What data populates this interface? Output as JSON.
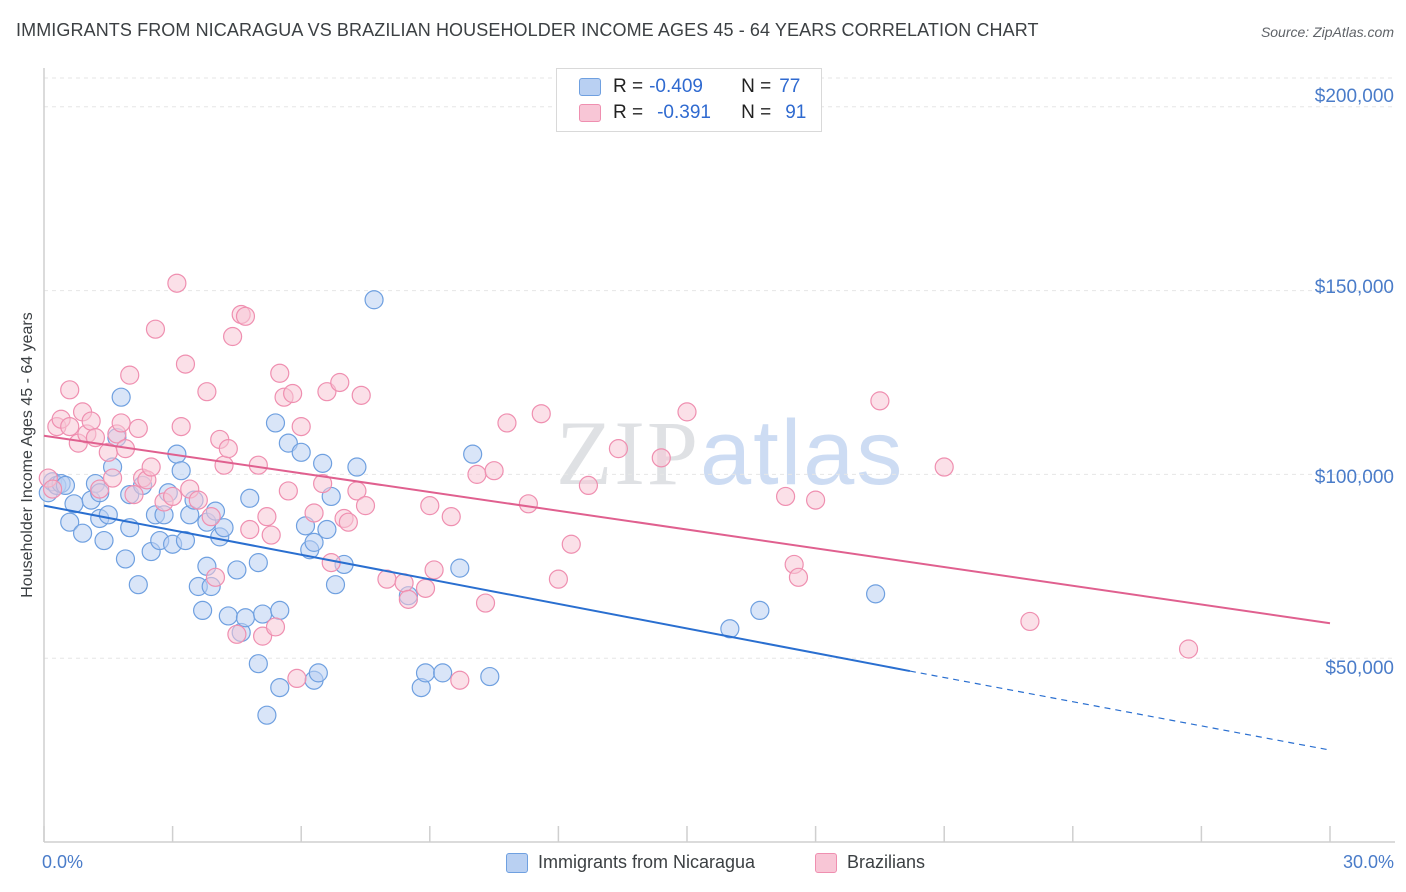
{
  "header": {
    "title": "IMMIGRANTS FROM NICARAGUA VS BRAZILIAN HOUSEHOLDER INCOME AGES 45 - 64 YEARS CORRELATION CHART",
    "source": "Source: ZipAtlas.com"
  },
  "watermark": {
    "zip": "ZIP",
    "atlas": "atlas"
  },
  "legend": {
    "r_label": "R =",
    "n_label": "N =",
    "rows": [
      {
        "r": "-0.409",
        "n": "77",
        "color": "#6fa0e0"
      },
      {
        "r": "-0.391",
        "n": "91",
        "color": "#ef8fb0"
      }
    ]
  },
  "colors": {
    "blue_fill": "#b9d0f2",
    "blue_stroke": "#6fa0e0",
    "blue_line": "#2a6fd0",
    "pink_fill": "#f8c6d6",
    "pink_stroke": "#ef8fb0",
    "pink_line": "#e0608f",
    "grid": "#e6e6e6",
    "tick_label": "#4a7cc9"
  },
  "chart_data": {
    "type": "scatter",
    "title": "IMMIGRANTS FROM NICARAGUA VS BRAZILIAN HOUSEHOLDER INCOME AGES 45 - 64 YEARS CORRELATION CHART",
    "xlabel": "",
    "ylabel": "Householder Income Ages 45 - 64 years",
    "xlim": [
      0,
      30
    ],
    "ylim": [
      0,
      210000
    ],
    "x_tick_labels": [
      "0.0%",
      "30.0%"
    ],
    "y_ticks": [
      50000,
      100000,
      150000,
      200000
    ],
    "y_tick_labels": [
      "$50,000",
      "$100,000",
      "$150,000",
      "$200,000"
    ],
    "grid": true,
    "legend_position": "top-center",
    "series": [
      {
        "name": "Immigrants from Nicaragua",
        "color": "#6fa0e0",
        "trend": {
          "x0": 0.0,
          "y0": 91500,
          "x1": 20.2,
          "y1": 46500,
          "dashed_to_x": 30.0,
          "dashed_to_y": 25000
        },
        "points": [
          [
            0.1,
            95000
          ],
          [
            0.2,
            98000
          ],
          [
            0.3,
            97000
          ],
          [
            0.4,
            97500
          ],
          [
            0.5,
            97000
          ],
          [
            0.6,
            87000
          ],
          [
            0.7,
            92000
          ],
          [
            0.9,
            84000
          ],
          [
            1.1,
            93000
          ],
          [
            1.2,
            97500
          ],
          [
            1.3,
            88000
          ],
          [
            1.3,
            95000
          ],
          [
            1.4,
            82000
          ],
          [
            1.5,
            89000
          ],
          [
            1.6,
            102000
          ],
          [
            1.7,
            110000
          ],
          [
            1.8,
            121000
          ],
          [
            1.9,
            77000
          ],
          [
            2.0,
            94500
          ],
          [
            2.0,
            85500
          ],
          [
            2.2,
            70000
          ],
          [
            2.3,
            97000
          ],
          [
            2.5,
            79000
          ],
          [
            2.6,
            89000
          ],
          [
            2.7,
            82000
          ],
          [
            2.8,
            89000
          ],
          [
            2.9,
            95000
          ],
          [
            3.0,
            81000
          ],
          [
            3.1,
            105500
          ],
          [
            3.2,
            101000
          ],
          [
            3.3,
            82000
          ],
          [
            3.4,
            89000
          ],
          [
            3.5,
            93000
          ],
          [
            3.6,
            69500
          ],
          [
            3.7,
            63000
          ],
          [
            3.8,
            75000
          ],
          [
            3.8,
            87000
          ],
          [
            3.9,
            69500
          ],
          [
            4.0,
            90000
          ],
          [
            4.1,
            83000
          ],
          [
            4.2,
            85500
          ],
          [
            4.3,
            61500
          ],
          [
            4.5,
            74000
          ],
          [
            4.6,
            57000
          ],
          [
            4.7,
            61000
          ],
          [
            4.8,
            93500
          ],
          [
            5.0,
            76000
          ],
          [
            5.0,
            48500
          ],
          [
            5.1,
            62000
          ],
          [
            5.2,
            34500
          ],
          [
            5.4,
            114000
          ],
          [
            5.5,
            63000
          ],
          [
            5.5,
            42000
          ],
          [
            5.7,
            108500
          ],
          [
            6.0,
            106000
          ],
          [
            6.1,
            86000
          ],
          [
            6.2,
            79500
          ],
          [
            6.3,
            81500
          ],
          [
            6.3,
            44000
          ],
          [
            6.4,
            46000
          ],
          [
            6.5,
            103000
          ],
          [
            6.6,
            85000
          ],
          [
            6.7,
            94000
          ],
          [
            6.8,
            70000
          ],
          [
            7.0,
            75500
          ],
          [
            7.3,
            102000
          ],
          [
            7.7,
            147500
          ],
          [
            8.5,
            67000
          ],
          [
            8.8,
            42000
          ],
          [
            8.9,
            46000
          ],
          [
            9.3,
            46000
          ],
          [
            9.7,
            74500
          ],
          [
            10.0,
            105500
          ],
          [
            10.4,
            45000
          ],
          [
            16.0,
            58000
          ],
          [
            16.7,
            63000
          ],
          [
            19.4,
            67500
          ]
        ]
      },
      {
        "name": "Brazilians",
        "color": "#ef8fb0",
        "trend": {
          "x0": 0.0,
          "y0": 110500,
          "x1": 30.0,
          "y1": 59500
        },
        "points": [
          [
            0.1,
            99000
          ],
          [
            0.2,
            96000
          ],
          [
            0.3,
            113000
          ],
          [
            0.4,
            115000
          ],
          [
            0.6,
            123000
          ],
          [
            0.6,
            113000
          ],
          [
            0.8,
            108500
          ],
          [
            0.9,
            117000
          ],
          [
            1.0,
            111000
          ],
          [
            1.1,
            114500
          ],
          [
            1.2,
            110000
          ],
          [
            1.3,
            96000
          ],
          [
            1.5,
            106000
          ],
          [
            1.6,
            99000
          ],
          [
            1.7,
            111000
          ],
          [
            1.8,
            114000
          ],
          [
            1.9,
            107000
          ],
          [
            2.0,
            127000
          ],
          [
            2.1,
            94500
          ],
          [
            2.2,
            112500
          ],
          [
            2.3,
            99000
          ],
          [
            2.4,
            98500
          ],
          [
            2.5,
            102000
          ],
          [
            2.6,
            139500
          ],
          [
            2.8,
            92500
          ],
          [
            3.0,
            94000
          ],
          [
            3.1,
            152000
          ],
          [
            3.2,
            113000
          ],
          [
            3.3,
            130000
          ],
          [
            3.4,
            96000
          ],
          [
            3.6,
            93000
          ],
          [
            3.8,
            122500
          ],
          [
            3.9,
            88500
          ],
          [
            4.0,
            72000
          ],
          [
            4.1,
            109500
          ],
          [
            4.2,
            102500
          ],
          [
            4.3,
            107000
          ],
          [
            4.4,
            137500
          ],
          [
            4.5,
            56500
          ],
          [
            4.6,
            143500
          ],
          [
            4.7,
            143000
          ],
          [
            4.8,
            85000
          ],
          [
            5.0,
            102500
          ],
          [
            5.1,
            56000
          ],
          [
            5.2,
            88500
          ],
          [
            5.3,
            83500
          ],
          [
            5.4,
            58500
          ],
          [
            5.5,
            127500
          ],
          [
            5.6,
            121000
          ],
          [
            5.7,
            95500
          ],
          [
            5.8,
            122000
          ],
          [
            5.9,
            44500
          ],
          [
            6.0,
            113000
          ],
          [
            6.3,
            89500
          ],
          [
            6.5,
            97500
          ],
          [
            6.6,
            122500
          ],
          [
            6.7,
            76000
          ],
          [
            6.9,
            125000
          ],
          [
            7.0,
            88000
          ],
          [
            7.1,
            87000
          ],
          [
            7.3,
            95500
          ],
          [
            7.4,
            121500
          ],
          [
            7.5,
            91500
          ],
          [
            8.0,
            71500
          ],
          [
            8.4,
            70500
          ],
          [
            8.5,
            66000
          ],
          [
            8.9,
            69000
          ],
          [
            9.0,
            91500
          ],
          [
            9.1,
            74000
          ],
          [
            9.5,
            88500
          ],
          [
            9.7,
            44000
          ],
          [
            10.1,
            100000
          ],
          [
            10.3,
            65000
          ],
          [
            10.5,
            101000
          ],
          [
            10.8,
            114000
          ],
          [
            11.3,
            92000
          ],
          [
            11.6,
            116500
          ],
          [
            12.0,
            71500
          ],
          [
            12.3,
            81000
          ],
          [
            12.7,
            97000
          ],
          [
            13.4,
            107000
          ],
          [
            14.4,
            104500
          ],
          [
            15.0,
            117000
          ],
          [
            17.3,
            94000
          ],
          [
            17.5,
            75500
          ],
          [
            17.6,
            72000
          ],
          [
            18.0,
            93000
          ],
          [
            19.5,
            120000
          ],
          [
            21.0,
            102000
          ],
          [
            23.0,
            60000
          ],
          [
            26.7,
            52500
          ]
        ]
      }
    ]
  },
  "bottom_legend": {
    "items": [
      {
        "label": "Immigrants from Nicaragua"
      },
      {
        "label": "Brazilians"
      }
    ]
  }
}
